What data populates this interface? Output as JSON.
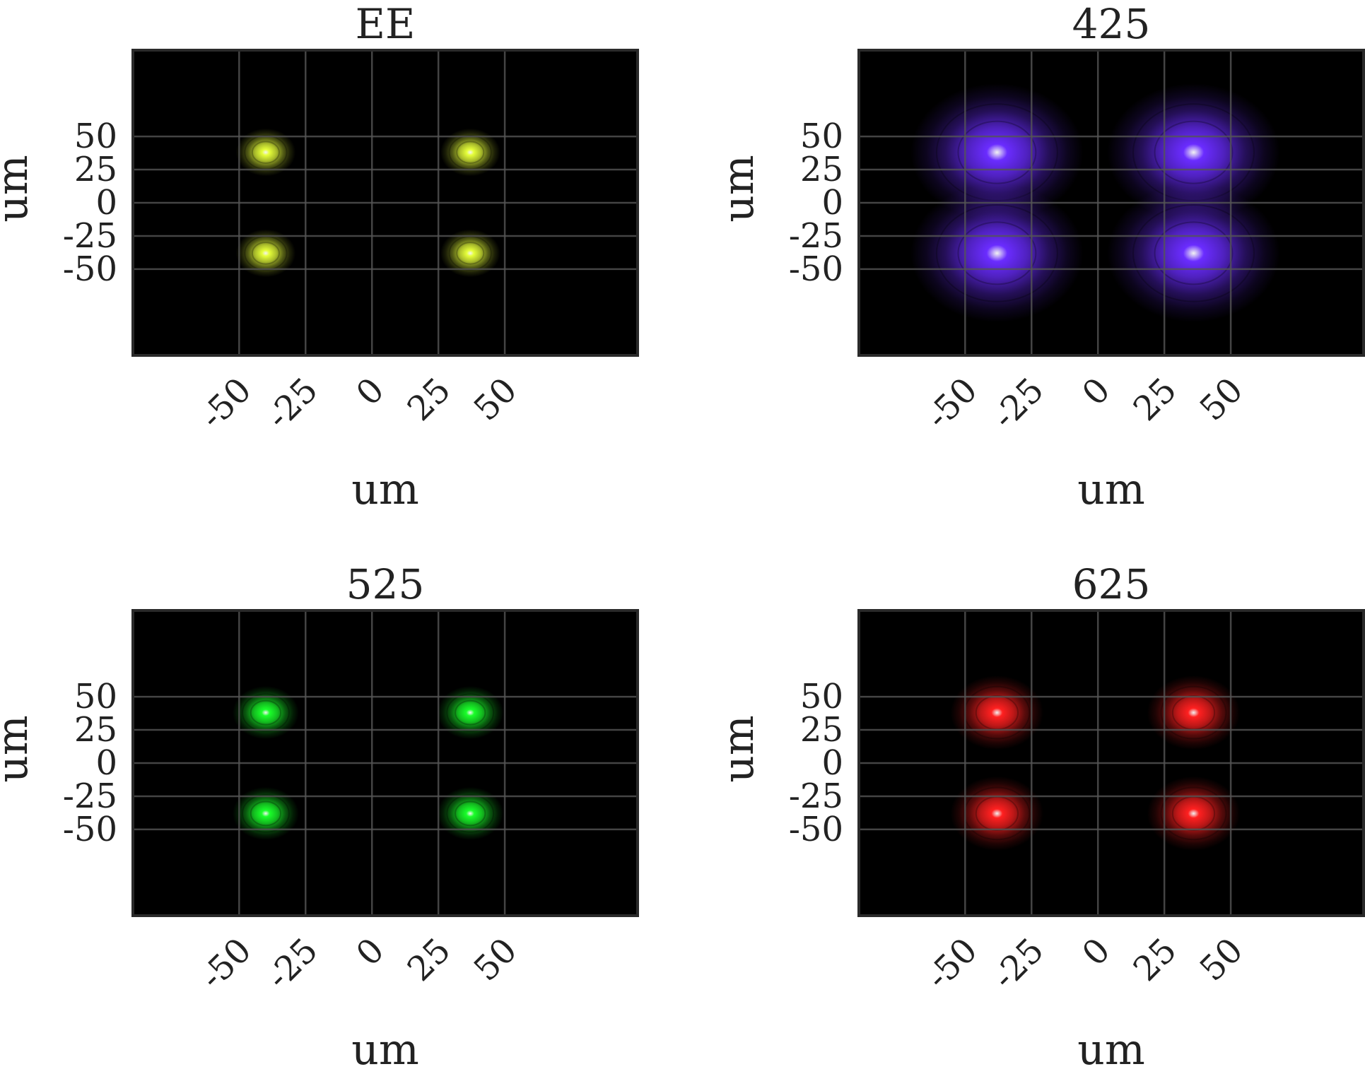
{
  "chart_data": [
    {
      "type": "heatmap",
      "title": "EE",
      "xlabel": "um",
      "ylabel": "um",
      "xlim": [
        -90,
        100
      ],
      "ylim": [
        -115,
        115
      ],
      "xticks": [
        -50,
        -25,
        0,
        25,
        50
      ],
      "yticks": [
        50,
        25,
        0,
        -25,
        -50
      ],
      "xtick_labels": [
        "-50",
        "-25",
        "0",
        "25",
        "50"
      ],
      "ytick_labels": [
        "50",
        "25",
        "0",
        "-25",
        "-50"
      ],
      "grid": true,
      "background": "#000000",
      "spots": [
        {
          "x": -40,
          "y": 38,
          "radius": 9,
          "color": "#e6ff3a"
        },
        {
          "x": 37,
          "y": 38,
          "radius": 9,
          "color": "#e6ff3a"
        },
        {
          "x": -40,
          "y": -38,
          "radius": 9,
          "color": "#e6ff3a"
        },
        {
          "x": 37,
          "y": -38,
          "radius": 9,
          "color": "#e6ff3a"
        }
      ]
    },
    {
      "type": "heatmap",
      "title": "425",
      "xlabel": "um",
      "ylabel": "um",
      "xlim": [
        -90,
        100
      ],
      "ylim": [
        -115,
        115
      ],
      "xticks": [
        -50,
        -25,
        0,
        25,
        50
      ],
      "yticks": [
        50,
        25,
        0,
        -25,
        -50
      ],
      "xtick_labels": [
        "-50",
        "-25",
        "0",
        "25",
        "50"
      ],
      "ytick_labels": [
        "50",
        "25",
        "0",
        "-25",
        "-50"
      ],
      "grid": true,
      "background": "#000000",
      "spots": [
        {
          "x": -38,
          "y": 38,
          "radius": 26,
          "color": "#6a2cff"
        },
        {
          "x": 36,
          "y": 38,
          "radius": 26,
          "color": "#6a2cff"
        },
        {
          "x": -38,
          "y": -38,
          "radius": 26,
          "color": "#6a2cff"
        },
        {
          "x": 36,
          "y": -38,
          "radius": 26,
          "color": "#6a2cff"
        }
      ]
    },
    {
      "type": "heatmap",
      "title": "525",
      "xlabel": "um",
      "ylabel": "um",
      "xlim": [
        -90,
        100
      ],
      "ylim": [
        -115,
        115
      ],
      "xticks": [
        -50,
        -25,
        0,
        25,
        50
      ],
      "yticks": [
        50,
        25,
        0,
        -25,
        -50
      ],
      "xtick_labels": [
        "-50",
        "-25",
        "0",
        "25",
        "50"
      ],
      "ytick_labels": [
        "50",
        "25",
        "0",
        "-25",
        "-50"
      ],
      "grid": true,
      "background": "#000000",
      "spots": [
        {
          "x": -40,
          "y": 38,
          "radius": 10,
          "color": "#1aff2a"
        },
        {
          "x": 37,
          "y": 38,
          "radius": 10,
          "color": "#1aff2a"
        },
        {
          "x": -40,
          "y": -38,
          "radius": 10,
          "color": "#1aff2a"
        },
        {
          "x": 37,
          "y": -38,
          "radius": 10,
          "color": "#1aff2a"
        }
      ]
    },
    {
      "type": "heatmap",
      "title": "625",
      "xlabel": "um",
      "ylabel": "um",
      "xlim": [
        -90,
        100
      ],
      "ylim": [
        -115,
        115
      ],
      "xticks": [
        -50,
        -25,
        0,
        25,
        50
      ],
      "yticks": [
        50,
        25,
        0,
        -25,
        -50
      ],
      "xtick_labels": [
        "-50",
        "-25",
        "0",
        "25",
        "50"
      ],
      "ytick_labels": [
        "50",
        "25",
        "0",
        "-25",
        "-50"
      ],
      "grid": true,
      "background": "#000000",
      "spots": [
        {
          "x": -38,
          "y": 38,
          "radius": 14,
          "color": "#ff2020"
        },
        {
          "x": 36,
          "y": 38,
          "radius": 14,
          "color": "#ff2020"
        },
        {
          "x": -38,
          "y": -38,
          "radius": 14,
          "color": "#ff2020"
        },
        {
          "x": 36,
          "y": -38,
          "radius": 14,
          "color": "#ff2020"
        }
      ]
    }
  ]
}
